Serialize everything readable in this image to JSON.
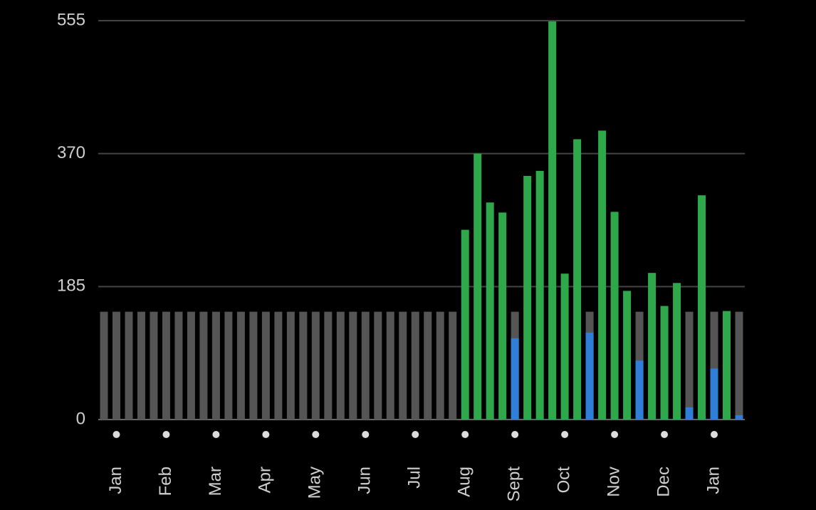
{
  "chart_data": {
    "type": "bar",
    "categories": [
      null,
      "Jan",
      null,
      null,
      null,
      "Feb",
      null,
      null,
      null,
      "Mar",
      null,
      null,
      null,
      "Apr",
      null,
      null,
      null,
      "May",
      null,
      null,
      null,
      "Jun",
      null,
      null,
      null,
      "Jul",
      null,
      null,
      null,
      "Aug",
      null,
      null,
      null,
      "Sept",
      null,
      null,
      null,
      "Oct",
      null,
      null,
      null,
      "Nov",
      null,
      null,
      null,
      "Dec",
      null,
      null,
      null,
      "Jan",
      null,
      null
    ],
    "values": [
      0,
      0,
      0,
      0,
      0,
      0,
      0,
      0,
      0,
      0,
      0,
      0,
      0,
      0,
      0,
      0,
      0,
      0,
      0,
      0,
      0,
      0,
      0,
      0,
      0,
      0,
      0,
      0,
      0,
      264,
      370,
      302,
      288,
      113,
      339,
      346,
      554,
      203,
      390,
      121,
      402,
      289,
      179,
      82,
      204,
      158,
      190,
      17,
      312,
      71,
      151,
      6
    ],
    "target": 150,
    "target_color": "#555555",
    "above_color": "#2ea84a",
    "below_color": "#2f7ed8",
    "ylim": [
      0,
      555
    ],
    "yticks": [
      0,
      185,
      370,
      555
    ],
    "grid": true
  }
}
